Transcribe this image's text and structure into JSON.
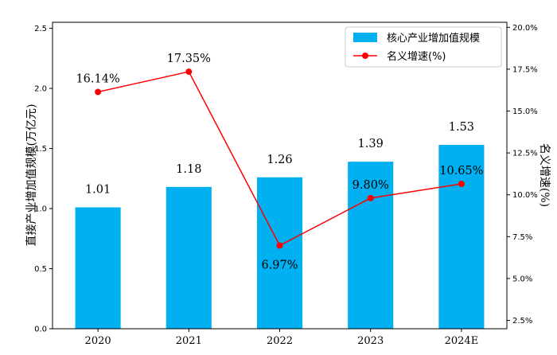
{
  "chart_data": {
    "type": "bar+line",
    "categories": [
      "2020",
      "2021",
      "2022",
      "2023",
      "2024E"
    ],
    "bar_series": {
      "name": "核心产业增加值规模",
      "values": [
        1.01,
        1.18,
        1.26,
        1.39,
        1.53
      ],
      "labels": [
        "1.01",
        "1.18",
        "1.26",
        "1.39",
        "1.53"
      ],
      "color": "#00b0f0"
    },
    "line_series": {
      "name": "名义增速(%)",
      "values": [
        16.14,
        17.35,
        6.97,
        9.8,
        10.65
      ],
      "labels": [
        "16.14%",
        "17.35%",
        "6.97%",
        "9.80%",
        "10.65%"
      ],
      "color": "#ff0000"
    },
    "y_left": {
      "label": "直接产业增加值规模(万亿元)",
      "ylim": [
        0,
        2.55
      ],
      "ticks": [
        0.0,
        0.5,
        1.0,
        1.5,
        2.0,
        2.5
      ],
      "tick_labels": [
        "0.0",
        "0.5",
        "1.0",
        "1.5",
        "2.0",
        "2.5"
      ]
    },
    "y_right": {
      "label": "名义增速(%)",
      "ylim": [
        2.0,
        20.3
      ],
      "ticks": [
        2.5,
        5.0,
        7.5,
        10.0,
        12.5,
        15.0,
        17.5,
        20.0
      ],
      "tick_labels": [
        "2.5%",
        "5.0%",
        "7.5%",
        "10.0%",
        "12.5%",
        "15.0%",
        "17.5%",
        "20.0%"
      ]
    },
    "legend_position": "top-right",
    "grid": false
  }
}
